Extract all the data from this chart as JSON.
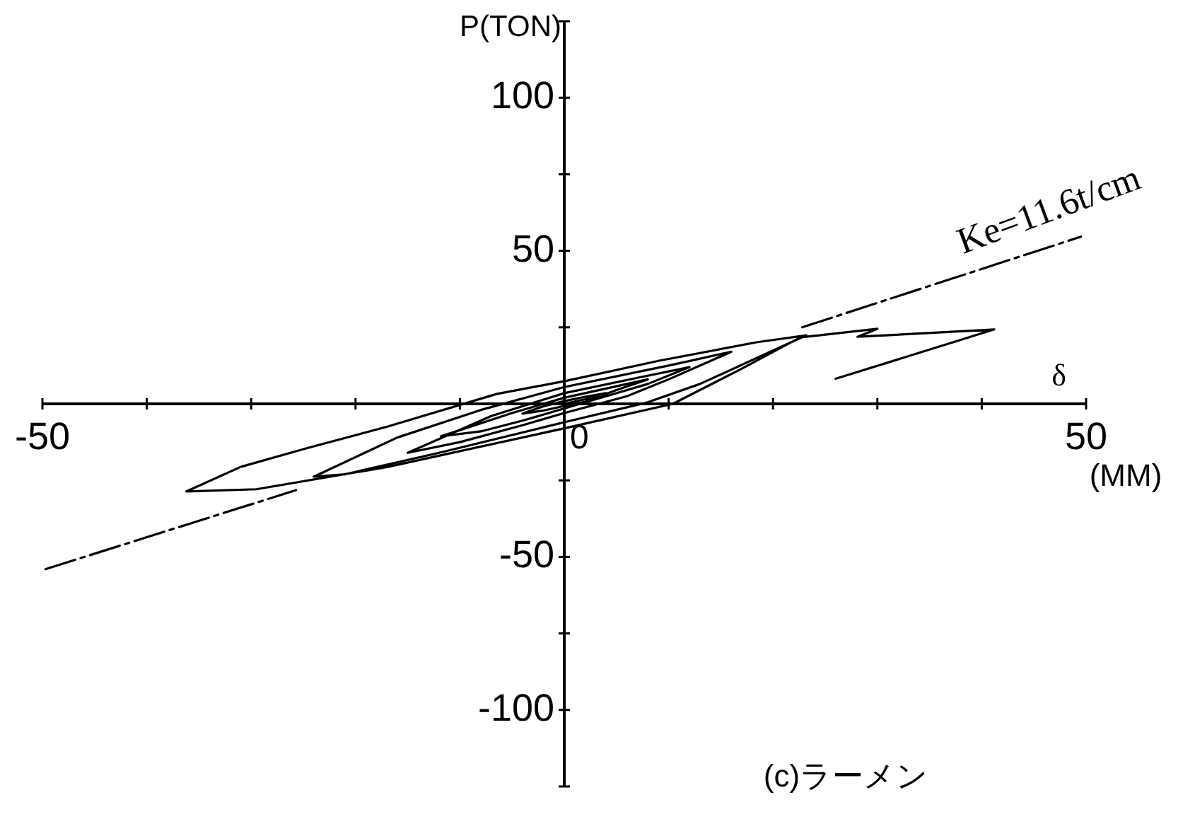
{
  "chart_data": {
    "type": "line",
    "title": "(c)ラーメン",
    "xlabel": "δ",
    "ylabel": "P(TON)",
    "annotations": [
      "0",
      "(MM)"
    ],
    "xlim": [
      -50,
      50
    ],
    "ylim": [
      -125,
      125
    ],
    "xticks": [
      -50,
      {
        "value": -40,
        "label": null
      },
      {
        "value": -30,
        "label": null
      },
      {
        "value": -20,
        "label": null
      },
      {
        "value": -10,
        "label": null
      },
      {
        "value": 0,
        "label": null
      },
      {
        "value": 10,
        "label": null
      },
      {
        "value": 20,
        "label": null
      },
      {
        "value": 30,
        "label": null
      },
      {
        "value": 40,
        "label": null
      },
      50
    ],
    "yticks": [
      {
        "value": -125,
        "label": null
      },
      -100,
      {
        "value": -75,
        "label": null
      },
      -50,
      {
        "value": -25,
        "label": null
      },
      {
        "value": 0,
        "label": null
      },
      {
        "value": 25,
        "label": null
      },
      50,
      {
        "value": 75,
        "label": null
      },
      100,
      {
        "value": 125,
        "label": null
      }
    ],
    "series": [
      {
        "color": "#000000",
        "x": [
          0,
          2,
          4,
          2,
          0,
          -2,
          -4,
          -2,
          0,
          2,
          5,
          8,
          4,
          0,
          -5,
          -11.8,
          -8,
          -4,
          0,
          4,
          8,
          12,
          7,
          0,
          -7,
          -15,
          -10,
          -4,
          0,
          6,
          10,
          16,
          10,
          0,
          -8,
          -16,
          -24,
          -21,
          -12,
          0,
          8,
          13,
          23.2,
          18.4,
          9.1,
          0.3,
          -6.5,
          -16.9,
          -24.8,
          -31,
          -36.2,
          -29.5,
          -16.9,
          0,
          10.4,
          16.9,
          22.6,
          30,
          28.1,
          41.2,
          26
        ],
        "values": [
          0,
          1.5,
          3.5,
          2.3,
          0.9,
          -0.8,
          -3.2,
          -2.2,
          -0.7,
          0.7,
          4.5,
          8,
          5,
          2,
          -3,
          -10.6,
          -9,
          -5.5,
          -1.5,
          2.5,
          6.5,
          12,
          8.5,
          3.5,
          -4,
          -16,
          -12.5,
          -7,
          -3,
          2.5,
          8,
          17,
          12.5,
          5.5,
          -2,
          -11,
          -23.8,
          -23,
          -16,
          -6,
          0.5,
          6.5,
          22.4,
          20.1,
          14.1,
          7.6,
          3.2,
          -7.4,
          -14.6,
          -20.6,
          -28.6,
          -27.9,
          -20.6,
          -8,
          0,
          11.3,
          21.7,
          24.5,
          21.9,
          24.3,
          8.2
        ]
      },
      {
        "name": "Ke=11.6t/cm",
        "type": "line",
        "color": "#000000",
        "line_style": "dashed",
        "x": [
          -49.7,
          -25.7,
          0,
          22.8,
          49.5
        ],
        "values": [
          -54,
          -28.2,
          null,
          25,
          54.6
        ]
      }
    ]
  }
}
